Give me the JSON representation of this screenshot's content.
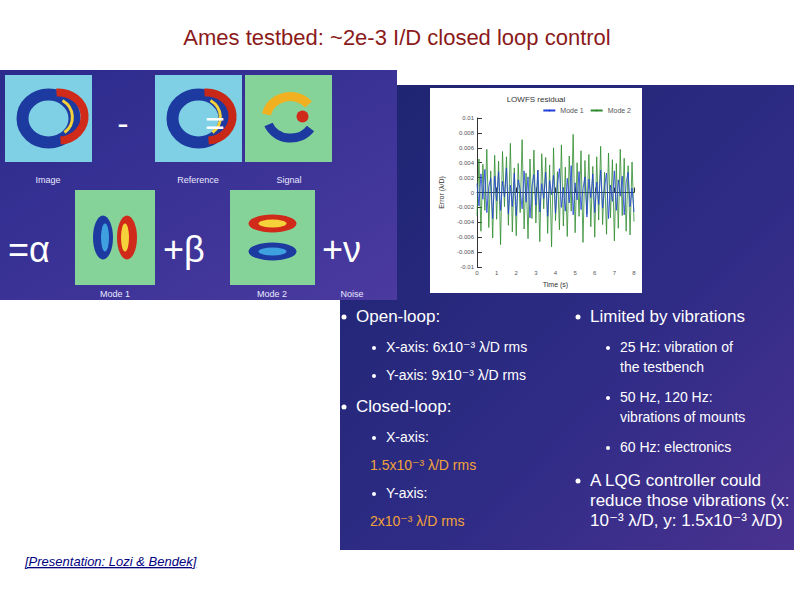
{
  "slide": {
    "title": "Ames testbed: ~2e-3 I/D closed loop control",
    "footer": "[Presentation: Lozi & Bendek]",
    "equation": {
      "top_labels": [
        "Image",
        "Reference",
        "Signal"
      ],
      "top_operators": [
        "-",
        "="
      ],
      "bottom_labels": [
        "Mode 1",
        "Mode 2",
        "Noise"
      ],
      "bottom_operators": [
        "=α",
        "+β",
        "+ν"
      ]
    },
    "left_bullets": [
      {
        "text": [
          "Open-loop:"
        ],
        "sub": [
          {
            "text": [
              "X-axis: 6x10⁻³ λ/D rms"
            ]
          },
          {
            "text": [
              "Y-axis: 9x10⁻³ λ/D rms"
            ]
          }
        ]
      },
      {
        "text": [
          "Closed-loop:"
        ],
        "sub": [
          {
            "text": [
              "X-axis:"
            ],
            "highlight": "1.5x10⁻³ λ/D rms"
          },
          {
            "text": [
              "Y-axis:"
            ],
            "highlight": "2x10⁻³ λ/D rms"
          }
        ]
      }
    ],
    "right_bullets": [
      {
        "text": [
          "Limited by vibrations"
        ],
        "sub": [
          {
            "text": [
              "25 Hz: vibration of",
              "the testbench"
            ]
          },
          {
            "text": [
              "50 Hz, 120 Hz:",
              "vibrations of mounts"
            ]
          },
          {
            "text": [
              "60 Hz: electronics"
            ]
          }
        ]
      },
      {
        "text": [
          "A LQG controller could",
          "reduce those vibrations (x:",
          "10⁻³ λ/D, y: 1.5x10⁻³ λ/D)"
        ],
        "sub": []
      }
    ]
  },
  "chart_data": {
    "type": "line",
    "title": "LOWFS residual",
    "x_label": "Time (s)",
    "y_label": "Error (λ/D)",
    "x": [
      0,
      0.1,
      0.2,
      0.3,
      0.4,
      0.5,
      0.6,
      0.7,
      0.8,
      0.9,
      1,
      1.1,
      1.2,
      1.3,
      1.4,
      1.5,
      1.6,
      1.7,
      1.8,
      1.9,
      2,
      2.1,
      2.2,
      2.3,
      2.4,
      2.5,
      2.6,
      2.7,
      2.8,
      2.9,
      3,
      3.1,
      3.2,
      3.3,
      3.4,
      3.5,
      3.6,
      3.7,
      3.8,
      3.9,
      4,
      4.1,
      4.2,
      4.3,
      4.4,
      4.5,
      4.6,
      4.7,
      4.8,
      4.9,
      5,
      5.1,
      5.2,
      5.3,
      5.4,
      5.5,
      5.6,
      5.7,
      5.8,
      5.9,
      6,
      6.1,
      6.2,
      6.3,
      6.4,
      6.5,
      6.6,
      6.7,
      6.8,
      6.9,
      7,
      7.1,
      7.2,
      7.3,
      7.4,
      7.5,
      7.6,
      7.7,
      7.8,
      7.9,
      8
    ],
    "series": [
      {
        "name": "Mode 1",
        "color": "#1f3fd8",
        "values": [
          0.0012,
          -0.0018,
          0.0025,
          -0.0009,
          0.0031,
          -0.0027,
          0.0008,
          0.0019,
          -0.0035,
          0.0022,
          -0.0011,
          0.0028,
          -0.0024,
          0.0015,
          -0.0006,
          0.0033,
          -0.0029,
          0.001,
          -0.0019,
          0.0026,
          -0.0031,
          0.0017,
          0.0004,
          -0.0022,
          0.0029,
          -0.0013,
          0.0021,
          -0.0034,
          0.0009,
          0.0024,
          -0.0017,
          0.003,
          -0.0026,
          0.0012,
          -0.0008,
          0.0027,
          -0.0032,
          0.0016,
          -0.0003,
          0.0023,
          -0.0028,
          0.0011,
          0.0032,
          -0.002,
          0.0007,
          -0.0025,
          0.0019,
          -0.0014,
          0.0036,
          -0.003,
          0.0013,
          -0.001,
          0.0028,
          -0.0023,
          0.0005,
          0.0021,
          -0.0033,
          0.0018,
          -0.0007,
          0.0025,
          -0.0027,
          0.0014,
          -0.0016,
          0.003,
          -0.0021,
          0.0008,
          0.0026,
          -0.0035,
          0.001,
          -0.0012,
          0.0029,
          -0.0024,
          0.0017,
          -0.0005,
          0.0022,
          -0.003,
          0.0013,
          0.0027,
          -0.0019,
          0.0006,
          -0.0026
        ]
      },
      {
        "name": "Mode 2",
        "color": "#2e8b2e",
        "values": [
          -0.0031,
          0.0045,
          -0.0052,
          0.0038,
          -0.0024,
          0.0058,
          -0.0047,
          0.0029,
          -0.0061,
          0.005,
          -0.0036,
          0.0042,
          -0.007,
          0.0055,
          -0.0019,
          0.0048,
          -0.0044,
          0.0066,
          -0.0053,
          0.0033,
          -0.0058,
          0.0039,
          -0.0027,
          0.0071,
          -0.0049,
          0.0026,
          -0.0062,
          0.0045,
          -0.0035,
          0.0057,
          -0.0041,
          0.003,
          -0.0066,
          0.0052,
          -0.0022,
          0.0047,
          -0.0055,
          0.0037,
          -0.0073,
          0.006,
          -0.0038,
          0.0028,
          -0.005,
          0.0064,
          -0.0045,
          0.0034,
          -0.0059,
          0.0049,
          -0.0025,
          0.0078,
          -0.0054,
          0.004,
          -0.0032,
          0.0056,
          -0.0067,
          0.0043,
          -0.0029,
          0.0051,
          -0.0046,
          0.0035,
          -0.006,
          0.0048,
          -0.0037,
          0.0062,
          -0.0043,
          0.0027,
          -0.0056,
          0.0053,
          -0.0034,
          0.0044,
          -0.0065,
          0.0039,
          -0.0048,
          0.0058,
          -0.0031,
          0.0046,
          -0.0052,
          0.0036,
          -0.0057,
          0.0041,
          -0.0039
        ]
      }
    ],
    "xlim": [
      0,
      8
    ],
    "xticks": [
      0,
      1,
      2,
      3,
      4,
      5,
      6,
      7,
      8
    ],
    "ylim": [
      -0.01,
      0.01
    ],
    "yticks": [
      -0.01,
      -0.008,
      -0.006,
      -0.004,
      -0.002,
      0,
      0.002,
      0.004,
      0.006,
      0.008,
      0.01
    ],
    "grid": false,
    "legend": "upper right"
  }
}
